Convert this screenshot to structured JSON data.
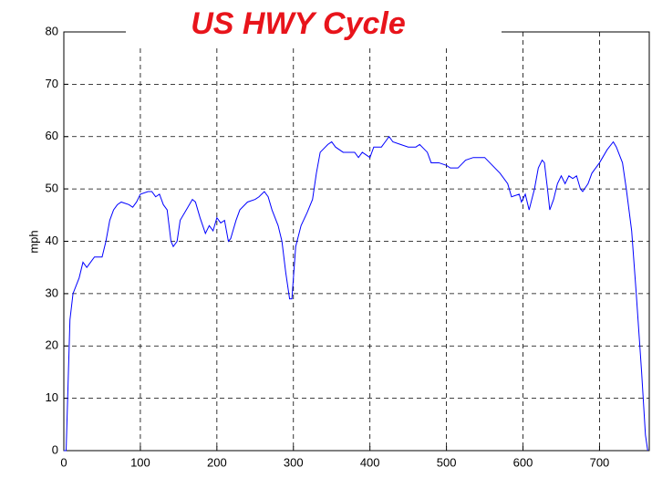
{
  "chart_data": {
    "type": "line",
    "title": "US HWY Cycle",
    "y_label": "mph",
    "x": [
      0,
      3,
      5,
      8,
      12,
      20,
      25,
      30,
      35,
      40,
      50,
      55,
      60,
      65,
      70,
      75,
      85,
      90,
      95,
      100,
      110,
      115,
      120,
      125,
      130,
      135,
      140,
      143,
      148,
      152,
      160,
      168,
      172,
      178,
      185,
      190,
      195,
      200,
      205,
      210,
      215,
      218,
      225,
      230,
      240,
      250,
      255,
      262,
      267,
      272,
      280,
      285,
      290,
      295,
      298,
      300,
      303,
      310,
      318,
      325,
      330,
      335,
      345,
      350,
      355,
      365,
      380,
      385,
      390,
      395,
      400,
      405,
      415,
      420,
      425,
      430,
      440,
      450,
      460,
      465,
      475,
      480,
      490,
      500,
      505,
      515,
      525,
      535,
      550,
      560,
      570,
      580,
      585,
      595,
      598,
      603,
      608,
      615,
      620,
      625,
      628,
      632,
      635,
      640,
      645,
      650,
      655,
      660,
      665,
      670,
      675,
      678,
      685,
      690,
      700,
      710,
      718,
      722,
      730,
      735,
      742,
      748,
      755,
      760,
      763
    ],
    "series": [
      {
        "name": "mph",
        "color": "#0000ff",
        "values": [
          0,
          0,
          10,
          25,
          30,
          33,
          36,
          35,
          36,
          37,
          37,
          40,
          44,
          46,
          47,
          47.5,
          47,
          46.5,
          47.5,
          49,
          49.5,
          49.5,
          48.5,
          49,
          47,
          46,
          40,
          39,
          40,
          44,
          46,
          48,
          47.5,
          44.5,
          41.5,
          43,
          42,
          44.5,
          43.5,
          44,
          40,
          40.5,
          44,
          46,
          47.5,
          48,
          48.5,
          49.5,
          48.5,
          46,
          43,
          40,
          34,
          29,
          29,
          33,
          39,
          43,
          45.5,
          48,
          53,
          57,
          58.5,
          59,
          58,
          57,
          57,
          56,
          57,
          56.5,
          56,
          58,
          58,
          59,
          60,
          59,
          58.5,
          58,
          58,
          58.5,
          57,
          55,
          55,
          54.5,
          54,
          54,
          55.5,
          56,
          56,
          54.5,
          53,
          51,
          48.5,
          49,
          47.5,
          49,
          46,
          50,
          54,
          55.5,
          55,
          50,
          46,
          48,
          51,
          52.5,
          51,
          52.5,
          52,
          52.5,
          50,
          49.5,
          51,
          53,
          55,
          57.5,
          59,
          58,
          55,
          50,
          42,
          30,
          15,
          3,
          0
        ]
      }
    ],
    "xlim": [
      0,
      765
    ],
    "ylim": [
      0,
      80
    ],
    "xticks": [
      0,
      100,
      200,
      300,
      400,
      500,
      600,
      700
    ],
    "yticks": [
      0,
      10,
      20,
      30,
      40,
      50,
      60,
      70,
      80
    ],
    "grid": true
  }
}
